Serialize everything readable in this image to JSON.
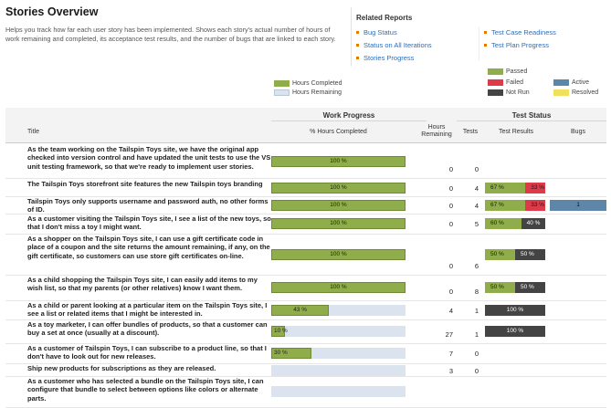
{
  "page": {
    "title": "Stories Overview",
    "description": "Helps you track how far each user story has been implemented. Shows each story's actual number of hours of work remaining and completed, its acceptance test results, and the number of bugs that are linked to each story."
  },
  "related_reports": {
    "title": "Related Reports",
    "left": [
      "Bug Status",
      "Status on All Iterations",
      "Stories Progress"
    ],
    "right": [
      "Test Case Readiness",
      "Test Plan Progress"
    ]
  },
  "legend": {
    "work": [
      {
        "label": "Hours Completed",
        "color": "#8fad4a"
      },
      {
        "label": "Hours Remaining",
        "color": "#dbe4ee"
      }
    ],
    "tests": [
      {
        "label": "Passed",
        "color": "#8fad4a"
      },
      {
        "label": "Failed",
        "color": "#de3a4a"
      },
      {
        "label": "Not Run",
        "color": "#444444"
      }
    ],
    "bugs": [
      {
        "label": "Active",
        "color": "#5d86a8"
      },
      {
        "label": "Resolved",
        "color": "#f0e060"
      }
    ]
  },
  "table": {
    "group_work": "Work Progress",
    "group_test": "Test Status",
    "col_title": "Title",
    "col_pct": "% Hours Completed",
    "col_hours": "Hours Remaining",
    "col_tests": "Tests",
    "col_results": "Test Results",
    "col_bugs": "Bugs",
    "rows": [
      {
        "title": "As the team working on the Tailspin Toys site, we have the original app checked into version control and have updated the unit tests to use the VS unit testing framework, so that we're ready to implement user stories.",
        "pct": 100,
        "pct_label": "100 %",
        "hours": "0",
        "tests": "0",
        "results": [],
        "bugs": null
      },
      {
        "title": "The Tailspin Toys storefront site features the new Tailspin toys branding",
        "pct": 100,
        "pct_label": "100 %",
        "hours": "0",
        "tests": "4",
        "results": [
          {
            "type": "passed",
            "pct": 67,
            "label": "67 %"
          },
          {
            "type": "failed",
            "pct": 33,
            "label": "33 %"
          }
        ],
        "bugs": null
      },
      {
        "title": "Tailspin Toys only supports username and password auth, no other forms of ID.",
        "pct": 100,
        "pct_label": "100 %",
        "hours": "0",
        "tests": "4",
        "results": [
          {
            "type": "passed",
            "pct": 67,
            "label": "67 %"
          },
          {
            "type": "failed",
            "pct": 33,
            "label": "33 %"
          }
        ],
        "bugs": {
          "active": "1"
        }
      },
      {
        "title": "As a customer visiting the Tailspin Toys site, I see a list of the new toys, so that I don't miss a toy I might want.",
        "pct": 100,
        "pct_label": "100 %",
        "hours": "0",
        "tests": "5",
        "results": [
          {
            "type": "passed",
            "pct": 60,
            "label": "60 %"
          },
          {
            "type": "notrun",
            "pct": 40,
            "label": "40 %"
          }
        ],
        "bugs": null
      },
      {
        "title": "As a shopper on the Tailspin Toys site, I can use a gift certificate code in place of a coupon and the site returns the amount remaining, if any, on the gift certificate, so customers can use store gift certificates on-line.",
        "pct": 100,
        "pct_label": "100 %",
        "hours": "0",
        "tests": "6",
        "results": [
          {
            "type": "passed",
            "pct": 50,
            "label": "50 %"
          },
          {
            "type": "notrun",
            "pct": 50,
            "label": "50 %"
          }
        ],
        "bugs": null
      },
      {
        "title": "As a child shopping the Tailspin Toys site, I can easily add items to my wish list, so that my parents (or other relatives) know I want them.",
        "pct": 100,
        "pct_label": "100 %",
        "hours": "0",
        "tests": "8",
        "results": [
          {
            "type": "passed",
            "pct": 50,
            "label": "50 %"
          },
          {
            "type": "notrun",
            "pct": 50,
            "label": "50 %"
          }
        ],
        "bugs": null
      },
      {
        "title": "As a child or parent looking at a particular item on the Tailspin Toys site, I see a list or related items that I might be interested in.",
        "pct": 43,
        "pct_label": "43 %",
        "hours": "4",
        "tests": "1",
        "results": [
          {
            "type": "notrun",
            "pct": 100,
            "label": "100 %"
          }
        ],
        "bugs": null
      },
      {
        "title": "As a toy marketer, I can offer bundles of products, so that a customer can buy a set at once (usually at a discount).",
        "pct": 10,
        "pct_label": "10 %",
        "hours": "27",
        "tests": "1",
        "results": [
          {
            "type": "notrun",
            "pct": 100,
            "label": "100 %"
          }
        ],
        "bugs": null
      },
      {
        "title": "As a customer of Tailspin Toys, I can subscribe to a product line, so that I don't have to look out for new releases.",
        "pct": 30,
        "pct_label": "30 %",
        "hours": "7",
        "tests": "0",
        "results": [],
        "bugs": null
      },
      {
        "title": "Ship new products for subscriptions as they are released.",
        "pct": 0,
        "pct_label": "",
        "hours": "3",
        "tests": "0",
        "results": [],
        "bugs": null
      },
      {
        "title": "As a customer who has selected a bundle on the Tailspin Toys site, I can configure that bundle to select between options like colors or alternate parts.",
        "pct": 0,
        "pct_label": "",
        "hours": "",
        "tests": "",
        "results": [],
        "bugs": null
      }
    ]
  }
}
